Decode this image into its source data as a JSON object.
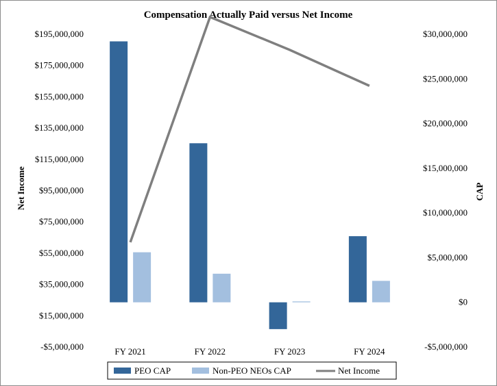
{
  "chart_data": {
    "type": "bar",
    "title": "Compensation Actually Paid versus Net Income",
    "categories": [
      "FY 2021",
      "FY 2022",
      "FY 2023",
      "FY 2024"
    ],
    "series": [
      {
        "name": "PEO CAP",
        "axis": "right",
        "kind": "bar",
        "color": "#336699",
        "values": [
          29200000,
          17800000,
          -3000000,
          7400000
        ]
      },
      {
        "name": "Non-PEO NEOs CAP",
        "axis": "right",
        "kind": "bar",
        "color": "#a3bfdf",
        "values": [
          5600000,
          3200000,
          100000,
          2400000
        ]
      },
      {
        "name": "Net Income",
        "axis": "left",
        "kind": "line",
        "color": "#7f7f7f",
        "values": [
          62000000,
          206000000,
          185000000,
          162000000
        ]
      }
    ],
    "left_axis": {
      "label": "Net Income",
      "ticks": [
        "$195,000,000",
        "$175,000,000",
        "$155,000,000",
        "$135,000,000",
        "$115,000,000",
        "$95,000,000",
        "$75,000,000",
        "$55,000,000",
        "$35,000,000",
        "$15,000,000",
        "-$5,000,000"
      ],
      "tick_values": [
        195000000,
        175000000,
        155000000,
        135000000,
        115000000,
        95000000,
        75000000,
        55000000,
        35000000,
        15000000,
        -5000000
      ],
      "ylim": [
        -5000000,
        195000000
      ]
    },
    "right_axis": {
      "label": "CAP",
      "ticks": [
        "$30,000,000",
        "$25,000,000",
        "$20,000,000",
        "$15,000,000",
        "$10,000,000",
        "$5,000,000",
        "$0",
        "-$5,000,000"
      ],
      "tick_values": [
        30000000,
        25000000,
        20000000,
        15000000,
        10000000,
        5000000,
        0,
        -5000000
      ],
      "ylim": [
        -5000000,
        30000000
      ]
    },
    "grid": false,
    "legend": {
      "placement": "bottom-center",
      "entries": [
        "PEO CAP",
        "Non-PEO NEOs CAP",
        "Net Income"
      ]
    }
  }
}
